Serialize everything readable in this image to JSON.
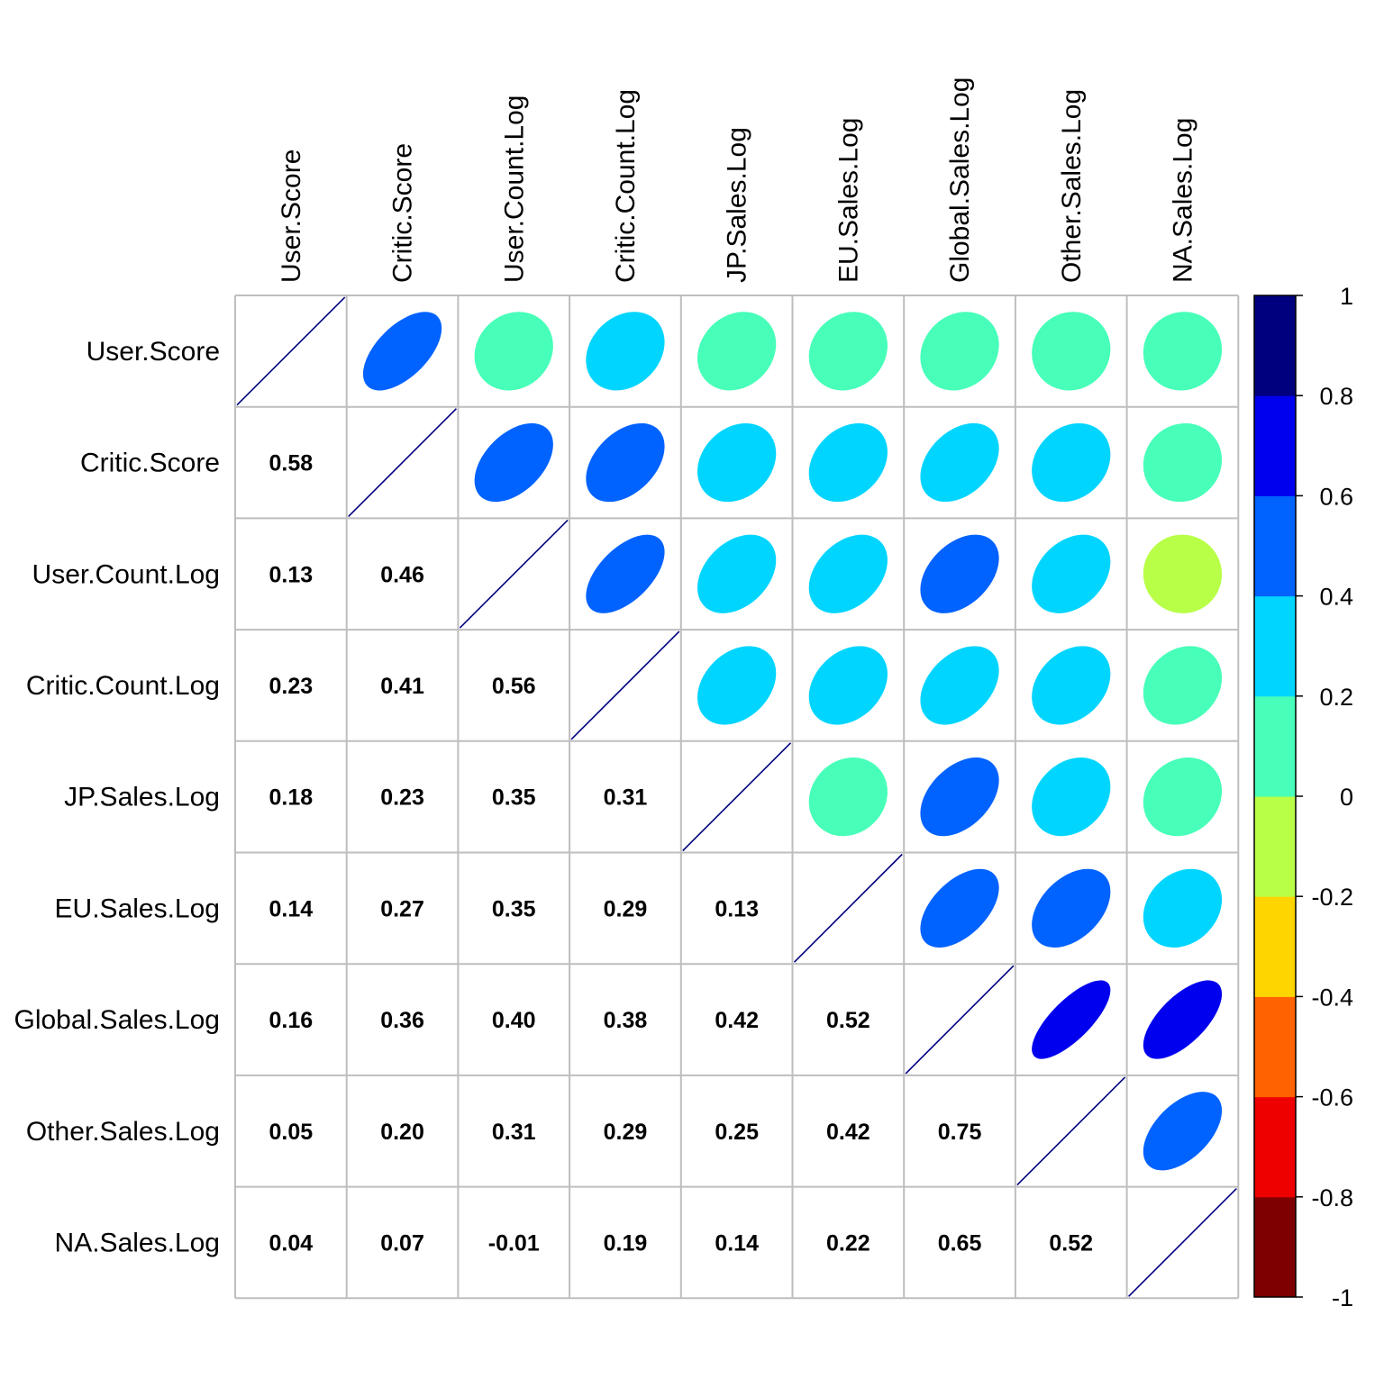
{
  "chart_data": {
    "type": "heatmap",
    "subtype": "correlation-matrix",
    "upper_method": "ellipse",
    "lower_method": "number",
    "diagonal": "line",
    "variables": [
      "User.Score",
      "Critic.Score",
      "User.Count.Log",
      "Critic.Count.Log",
      "JP.Sales.Log",
      "EU.Sales.Log",
      "Global.Sales.Log",
      "Other.Sales.Log",
      "NA.Sales.Log"
    ],
    "matrix": [
      [
        1.0,
        0.58,
        0.13,
        0.23,
        0.18,
        0.14,
        0.16,
        0.05,
        0.04
      ],
      [
        0.58,
        1.0,
        0.46,
        0.41,
        0.23,
        0.27,
        0.36,
        0.2,
        0.07
      ],
      [
        0.13,
        0.46,
        1.0,
        0.56,
        0.35,
        0.35,
        0.4,
        0.31,
        -0.01
      ],
      [
        0.23,
        0.41,
        0.56,
        1.0,
        0.31,
        0.29,
        0.38,
        0.29,
        0.19
      ],
      [
        0.18,
        0.23,
        0.35,
        0.31,
        1.0,
        0.13,
        0.42,
        0.25,
        0.14
      ],
      [
        0.14,
        0.27,
        0.35,
        0.29,
        0.13,
        1.0,
        0.52,
        0.42,
        0.22
      ],
      [
        0.16,
        0.36,
        0.4,
        0.38,
        0.42,
        0.52,
        1.0,
        0.75,
        0.65
      ],
      [
        0.05,
        0.2,
        0.31,
        0.29,
        0.25,
        0.42,
        0.75,
        1.0,
        0.52
      ],
      [
        0.04,
        0.07,
        -0.01,
        0.19,
        0.14,
        0.22,
        0.65,
        0.52,
        1.0
      ]
    ],
    "labels": [
      [
        "",
        "",
        "",
        "",
        "",
        "",
        "",
        "",
        ""
      ],
      [
        "0.58",
        "",
        "",
        "",
        "",
        "",
        "",
        "",
        ""
      ],
      [
        "0.13",
        "0.46",
        "",
        "",
        "",
        "",
        "",
        "",
        ""
      ],
      [
        "0.23",
        "0.41",
        "0.56",
        "",
        "",
        "",
        "",
        "",
        ""
      ],
      [
        "0.18",
        "0.23",
        "0.35",
        "0.31",
        "",
        "",
        "",
        "",
        ""
      ],
      [
        "0.14",
        "0.27",
        "0.35",
        "0.29",
        "0.13",
        "",
        "",
        "",
        ""
      ],
      [
        "0.16",
        "0.36",
        "0.40",
        "0.38",
        "0.42",
        "0.52",
        "",
        "",
        ""
      ],
      [
        "0.05",
        "0.20",
        "0.31",
        "0.29",
        "0.25",
        "0.42",
        "0.75",
        "",
        ""
      ],
      [
        "0.04",
        "0.07",
        "-0.01",
        "0.19",
        "0.14",
        "0.22",
        "0.65",
        "0.52",
        ""
      ]
    ],
    "colorbar": {
      "range": [
        -1,
        1
      ],
      "ticks": [
        1,
        0.8,
        0.6,
        0.4,
        0.2,
        0,
        -0.2,
        -0.4,
        -0.6,
        -0.8,
        -1
      ],
      "tick_labels": [
        "1",
        "0.8",
        "0.6",
        "0.4",
        "0.2",
        "0",
        "-0.2",
        "-0.4",
        "-0.6",
        "-0.8",
        "-1"
      ],
      "colors_low_to_high": [
        "#7F0000",
        "#EE0000",
        "#FF6200",
        "#FFD500",
        "#B8FF47",
        "#47FFB8",
        "#00D5FF",
        "#0062FF",
        "#0000EE",
        "#00007F"
      ]
    },
    "grid_color": "#BEBEBE",
    "diag_line_color": "#00007F",
    "title": "",
    "xlabel": "",
    "ylabel": ""
  }
}
